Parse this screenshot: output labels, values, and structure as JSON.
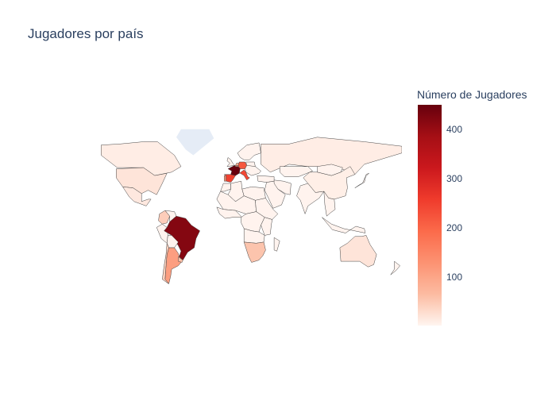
{
  "title": "Jugadores por país",
  "colorbar": {
    "title": "Número de Jugadores",
    "ticks": [
      "100",
      "200",
      "300",
      "400"
    ],
    "tick_values": [
      100,
      200,
      300,
      400
    ],
    "range": [
      1,
      450
    ],
    "colorscale": [
      "#fff5f0",
      "#fcbba1",
      "#fc9272",
      "#fb6a4a",
      "#ef3b2c",
      "#cb181d",
      "#a50f15",
      "#67000d"
    ]
  },
  "map": {
    "projection": "equirectangular",
    "land_color_no_data": "#e5ecf6",
    "border_color": "#444444",
    "values": {
      "Brasil": 420,
      "Francia": 450,
      "Alemania": 220,
      "Italia": 240,
      "España": 250,
      "Argentina": 110,
      "Portugal": 120,
      "Países Bajos": 90,
      "Bélgica": 80,
      "Uruguay": 60,
      "Chile": 40,
      "Colombia": 45,
      "Sudáfrica": 55,
      "Estados Unidos": 20,
      "Canadá": 10,
      "México": 15,
      "Rusia": 10,
      "China": 8,
      "Australia": 20,
      "Groenlandia": null,
      "Antártida": null
    }
  }
}
